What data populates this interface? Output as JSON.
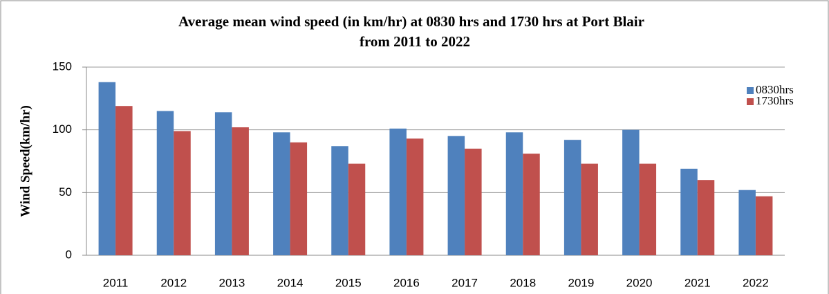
{
  "chart_data": {
    "type": "bar",
    "title": [
      "Average mean wind speed (in km/hr) at 0830 hrs and 1730 hrs at  Port Blair",
      "from   2011 to 2022"
    ],
    "y_label": "Wind Speed(km/hr)",
    "categories": [
      "2011",
      "2012",
      "2013",
      "2014",
      "2015",
      "2016",
      "2017",
      "2018",
      "2019",
      "2020",
      "2021",
      "2022"
    ],
    "series": [
      {
        "name": "0830hrs",
        "color": "#4f81bd",
        "values": [
          138,
          115,
          114,
          98,
          87,
          101,
          95,
          98,
          92,
          100,
          69,
          52
        ]
      },
      {
        "name": "1730hrs",
        "color": "#c0504d",
        "values": [
          119,
          99,
          102,
          90,
          73,
          93,
          85,
          81,
          73,
          73,
          60,
          47
        ]
      }
    ],
    "ylim": [
      0,
      150
    ],
    "yticks": [
      0,
      50,
      100,
      150
    ],
    "grid": true,
    "legend": "top-right"
  }
}
